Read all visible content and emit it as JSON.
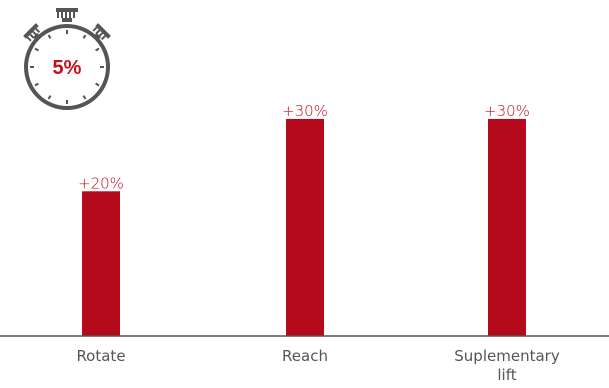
{
  "badge": {
    "label": "5%",
    "icon": "stopwatch-icon",
    "color": "#c0101e",
    "ring_color": "#555555"
  },
  "colors": {
    "bar": "#b5091c",
    "value_label": "#c0101e",
    "category_label": "#555555",
    "axis": "#555555"
  },
  "chart_data": {
    "type": "bar",
    "categories": [
      "Rotate",
      "Reach",
      "Suplementary lift"
    ],
    "values": [
      20,
      30,
      30
    ],
    "value_labels": [
      "+20%",
      "+30%",
      "+30%"
    ],
    "title": "",
    "xlabel": "",
    "ylabel": "",
    "ylim": [
      0,
      34
    ],
    "grid": false,
    "legend": "none"
  }
}
